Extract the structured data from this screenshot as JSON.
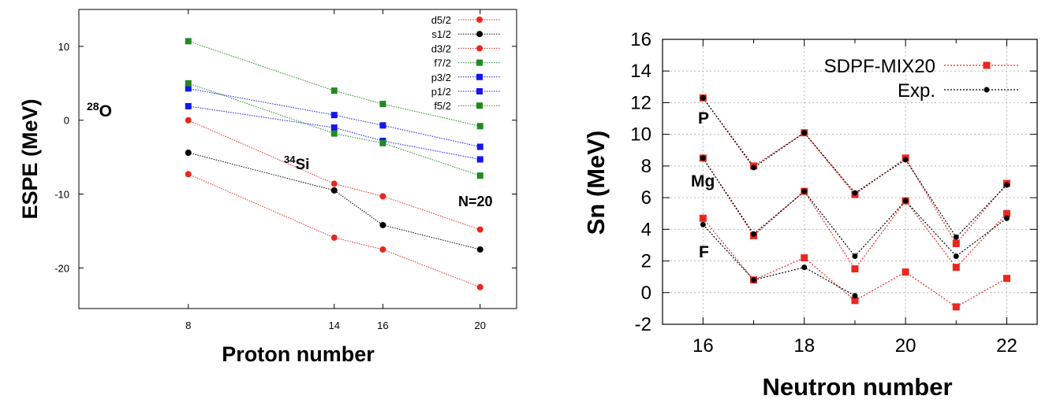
{
  "chart_data": [
    {
      "type": "line",
      "xlabel": "Proton number",
      "ylabel": "ESPE (MeV)",
      "xlim": [
        3.5,
        21.5
      ],
      "ylim": [
        -25.5,
        15
      ],
      "x_ticks": [
        8,
        14,
        16,
        20
      ],
      "y_ticks": [
        10,
        0,
        -10,
        -20
      ],
      "legend_position": "top-right",
      "grid": false,
      "x": [
        8,
        14,
        16,
        20
      ],
      "series": [
        {
          "name": "d5/2",
          "marker": "circle",
          "color": "#e8281e",
          "values": [
            -7.3,
            -15.9,
            -17.5,
            -22.6
          ]
        },
        {
          "name": "s1/2",
          "marker": "circle",
          "color": "#000000",
          "values": [
            -4.4,
            -9.5,
            -14.2,
            -17.5
          ]
        },
        {
          "name": "d3/2",
          "marker": "circle",
          "color": "#e8281e",
          "values": [
            0.0,
            -8.6,
            -10.3,
            -14.8
          ]
        },
        {
          "name": "f7/2",
          "marker": "square",
          "color": "#1f8a1f",
          "values": [
            10.7,
            4.0,
            2.2,
            -0.8
          ]
        },
        {
          "name": "p3/2",
          "marker": "square",
          "color": "#1515ee",
          "values": [
            4.3,
            0.7,
            -0.7,
            -3.6
          ]
        },
        {
          "name": "p1/2",
          "marker": "square",
          "color": "#1515ee",
          "values": [
            1.9,
            -1.0,
            -2.8,
            -5.3
          ]
        },
        {
          "name": "f5/2",
          "marker": "square",
          "color": "#1f8a1f",
          "values": [
            5.0,
            -1.8,
            -3.1,
            -7.5
          ]
        }
      ],
      "annotations": [
        {
          "text": "28",
          "sup": true
        },
        {
          "text": "O"
        },
        {
          "text": "34",
          "sup": true
        },
        {
          "text": "Si"
        },
        {
          "text": "N=20",
          "color": "#e8281e"
        }
      ]
    },
    {
      "type": "line",
      "xlabel": "Neutron number",
      "ylabel": "Sn (MeV)",
      "xlim": [
        15.2,
        22.6
      ],
      "ylim": [
        -2,
        16
      ],
      "x_ticks": [
        16,
        18,
        20,
        22
      ],
      "y_ticks": [
        -2,
        0,
        2,
        4,
        6,
        8,
        10,
        12,
        14,
        16
      ],
      "legend_position": "top-right",
      "grid": true,
      "series": [
        {
          "name": "SDPF-MIX20",
          "group": "P",
          "marker": "square",
          "color": "#e8281e",
          "x": [
            16,
            17,
            18,
            19,
            20,
            21,
            22
          ],
          "values": [
            12.3,
            8.0,
            10.1,
            6.2,
            8.5,
            3.1,
            6.9
          ]
        },
        {
          "name": "Exp.",
          "group": "P",
          "marker": "circle",
          "color": "#000000",
          "x": [
            16,
            17,
            18,
            19,
            20,
            21,
            22
          ],
          "values": [
            12.3,
            7.9,
            10.1,
            6.3,
            8.4,
            3.5,
            6.8
          ]
        },
        {
          "name": "SDPF-MIX20",
          "group": "Mg",
          "marker": "square",
          "color": "#e8281e",
          "x": [
            16,
            17,
            18,
            19,
            20,
            21,
            22
          ],
          "values": [
            8.5,
            3.6,
            6.4,
            1.5,
            5.8,
            1.6,
            5.0
          ]
        },
        {
          "name": "Exp.",
          "group": "Mg",
          "marker": "circle",
          "color": "#000000",
          "x": [
            16,
            17,
            18,
            19,
            20,
            21,
            22
          ],
          "values": [
            8.5,
            3.7,
            6.4,
            2.3,
            5.8,
            2.3,
            4.7
          ]
        },
        {
          "name": "SDPF-MIX20",
          "group": "F",
          "marker": "square",
          "color": "#e8281e",
          "x": [
            16,
            17,
            18,
            19,
            20,
            21,
            22
          ],
          "values": [
            4.7,
            0.8,
            2.2,
            -0.5,
            1.3,
            -0.9,
            0.9
          ]
        },
        {
          "name": "Exp.",
          "group": "F",
          "marker": "circle",
          "color": "#000000",
          "x": [
            16,
            17,
            18,
            19
          ],
          "values": [
            4.3,
            0.8,
            1.6,
            -0.2
          ]
        }
      ],
      "legend": [
        {
          "label": "SDPF-MIX20",
          "marker": "square",
          "color": "#e8281e"
        },
        {
          "label": "Exp.",
          "marker": "circle",
          "color": "#000000"
        }
      ],
      "annotations": [
        {
          "text": "P"
        },
        {
          "text": "Mg"
        },
        {
          "text": "F"
        }
      ]
    }
  ]
}
